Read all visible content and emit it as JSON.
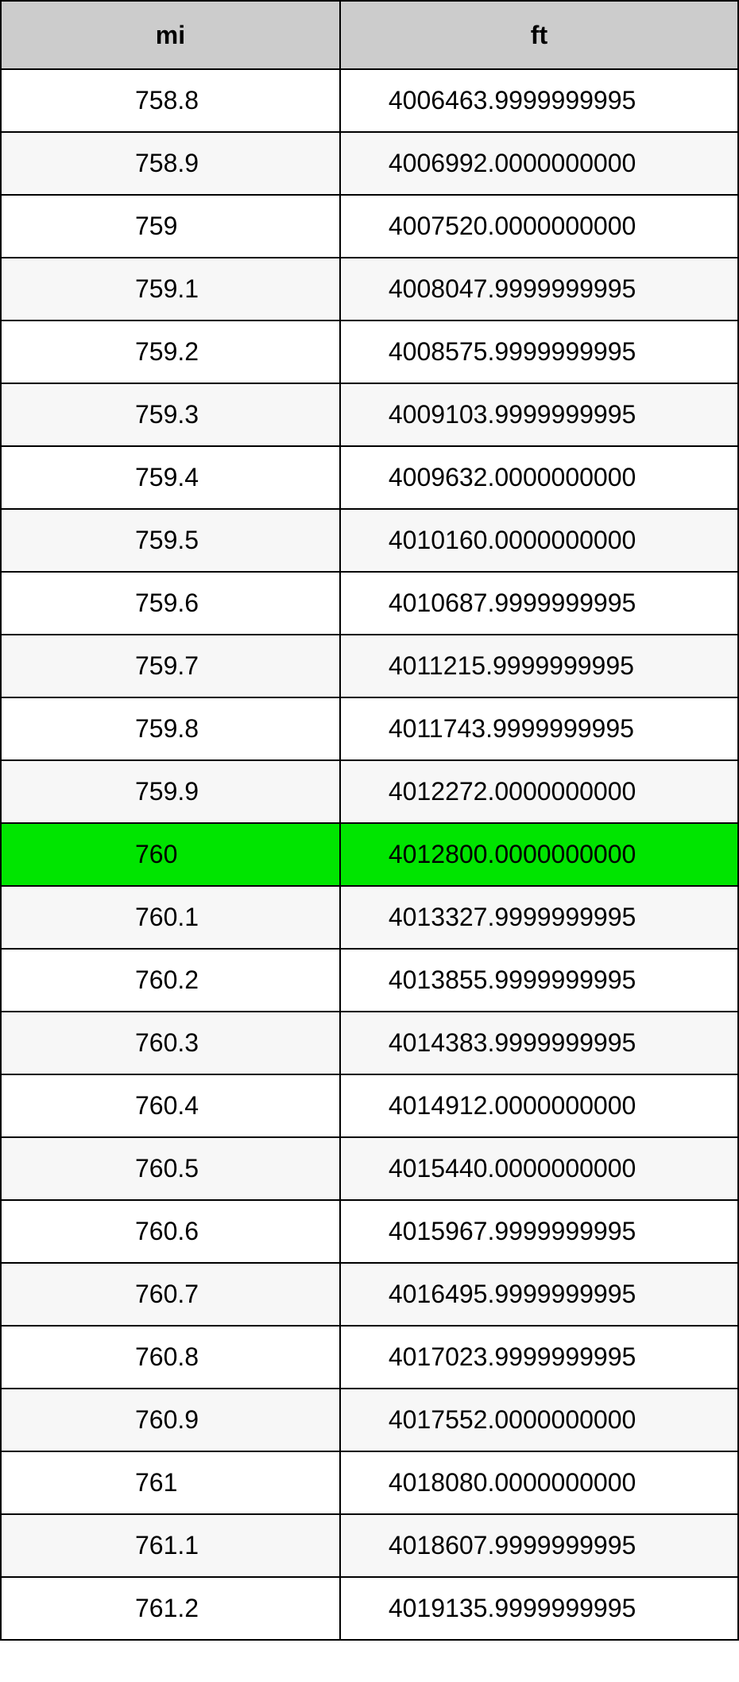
{
  "table": {
    "columns": [
      "mi",
      "ft"
    ],
    "header_bg": "#cccccc",
    "border_color": "#000000",
    "row_alt_bg": "#f7f7f7",
    "row_bg": "#ffffff",
    "highlight_bg": "#00e500",
    "highlight_index": 12,
    "font_size": 32,
    "rows": [
      {
        "mi": "758.8",
        "ft": "4006463.9999999995"
      },
      {
        "mi": "758.9",
        "ft": "4006992.0000000000"
      },
      {
        "mi": "759",
        "ft": "4007520.0000000000"
      },
      {
        "mi": "759.1",
        "ft": "4008047.9999999995"
      },
      {
        "mi": "759.2",
        "ft": "4008575.9999999995"
      },
      {
        "mi": "759.3",
        "ft": "4009103.9999999995"
      },
      {
        "mi": "759.4",
        "ft": "4009632.0000000000"
      },
      {
        "mi": "759.5",
        "ft": "4010160.0000000000"
      },
      {
        "mi": "759.6",
        "ft": "4010687.9999999995"
      },
      {
        "mi": "759.7",
        "ft": "4011215.9999999995"
      },
      {
        "mi": "759.8",
        "ft": "4011743.9999999995"
      },
      {
        "mi": "759.9",
        "ft": "4012272.0000000000"
      },
      {
        "mi": "760",
        "ft": "4012800.0000000000"
      },
      {
        "mi": "760.1",
        "ft": "4013327.9999999995"
      },
      {
        "mi": "760.2",
        "ft": "4013855.9999999995"
      },
      {
        "mi": "760.3",
        "ft": "4014383.9999999995"
      },
      {
        "mi": "760.4",
        "ft": "4014912.0000000000"
      },
      {
        "mi": "760.5",
        "ft": "4015440.0000000000"
      },
      {
        "mi": "760.6",
        "ft": "4015967.9999999995"
      },
      {
        "mi": "760.7",
        "ft": "4016495.9999999995"
      },
      {
        "mi": "760.8",
        "ft": "4017023.9999999995"
      },
      {
        "mi": "760.9",
        "ft": "4017552.0000000000"
      },
      {
        "mi": "761",
        "ft": "4018080.0000000000"
      },
      {
        "mi": "761.1",
        "ft": "4018607.9999999995"
      },
      {
        "mi": "761.2",
        "ft": "4019135.9999999995"
      }
    ]
  }
}
